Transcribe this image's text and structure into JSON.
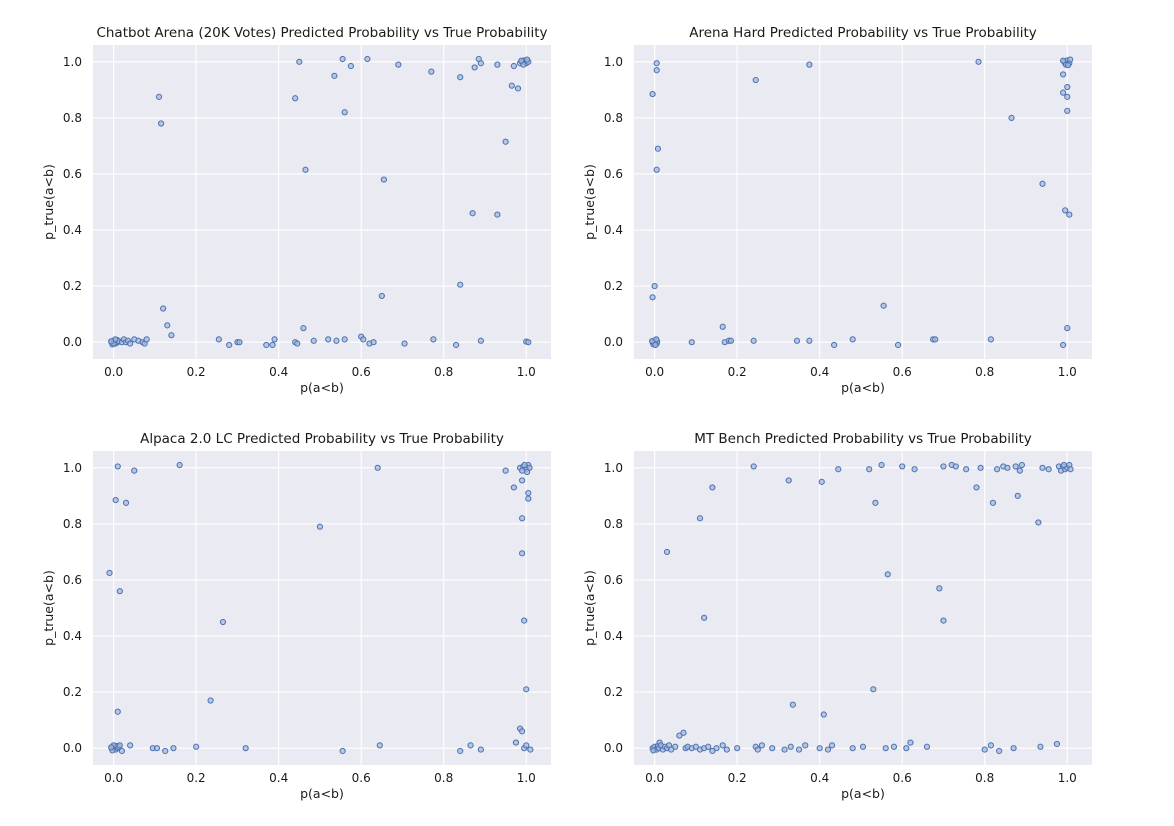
{
  "figure": {
    "colors": {
      "plot_bg": "#eaeaf2",
      "grid": "#ffffff",
      "marker_fill": "#a4b9dd",
      "marker_edge": "#4c72b0"
    }
  },
  "chart_data": [
    {
      "type": "scatter",
      "title": "Chatbot Arena (20K Votes) Predicted Probability vs True Probability",
      "xlabel": "p(a<b)",
      "ylabel": "p_true(a<b)",
      "xlim": [
        -0.05,
        1.06
      ],
      "ylim": [
        -0.06,
        1.06
      ],
      "xticks": [
        "0.0",
        "0.2",
        "0.4",
        "0.6",
        "0.8",
        "1.0"
      ],
      "yticks": [
        "0.0",
        "0.2",
        "0.4",
        "0.6",
        "0.8",
        "1.0"
      ],
      "grid": true,
      "points": [
        [
          -0.005,
          0.0
        ],
        [
          0.0,
          0.005
        ],
        [
          0.005,
          -0.005
        ],
        [
          0.008,
          0.008
        ],
        [
          -0.003,
          -0.008
        ],
        [
          0.01,
          0.0
        ],
        [
          0.0,
          -0.004
        ],
        [
          0.012,
          0.004
        ],
        [
          0.004,
          0.01
        ],
        [
          -0.006,
          0.003
        ],
        [
          0.02,
          0.0
        ],
        [
          0.025,
          0.01
        ],
        [
          0.03,
          0.0
        ],
        [
          0.035,
          0.005
        ],
        [
          0.04,
          -0.005
        ],
        [
          0.05,
          0.01
        ],
        [
          0.06,
          0.005
        ],
        [
          0.07,
          0.0
        ],
        [
          0.075,
          -0.005
        ],
        [
          0.08,
          0.01
        ],
        [
          0.11,
          0.875
        ],
        [
          0.115,
          0.78
        ],
        [
          0.12,
          0.12
        ],
        [
          0.13,
          0.06
        ],
        [
          0.14,
          0.025
        ],
        [
          0.255,
          0.01
        ],
        [
          0.28,
          -0.01
        ],
        [
          0.3,
          0.0
        ],
        [
          0.305,
          0.0
        ],
        [
          0.37,
          -0.01
        ],
        [
          0.385,
          -0.01
        ],
        [
          0.39,
          0.01
        ],
        [
          0.44,
          0.87
        ],
        [
          0.45,
          1.0
        ],
        [
          0.46,
          0.05
        ],
        [
          0.465,
          0.615
        ],
        [
          0.44,
          0.0
        ],
        [
          0.445,
          -0.005
        ],
        [
          0.485,
          0.005
        ],
        [
          0.52,
          0.01
        ],
        [
          0.535,
          0.95
        ],
        [
          0.54,
          0.005
        ],
        [
          0.555,
          1.01
        ],
        [
          0.56,
          0.82
        ],
        [
          0.56,
          0.01
        ],
        [
          0.575,
          0.985
        ],
        [
          0.6,
          0.02
        ],
        [
          0.605,
          0.01
        ],
        [
          0.615,
          1.01
        ],
        [
          0.62,
          -0.005
        ],
        [
          0.63,
          0.0
        ],
        [
          0.65,
          0.165
        ],
        [
          0.655,
          0.58
        ],
        [
          0.69,
          0.99
        ],
        [
          0.705,
          -0.005
        ],
        [
          0.77,
          0.965
        ],
        [
          0.775,
          0.01
        ],
        [
          0.83,
          -0.01
        ],
        [
          0.84,
          0.205
        ],
        [
          0.84,
          0.945
        ],
        [
          0.87,
          0.46
        ],
        [
          0.875,
          0.98
        ],
        [
          0.885,
          1.01
        ],
        [
          0.89,
          0.995
        ],
        [
          0.89,
          0.005
        ],
        [
          0.93,
          0.455
        ],
        [
          0.93,
          0.99
        ],
        [
          0.95,
          0.715
        ],
        [
          0.965,
          0.915
        ],
        [
          0.97,
          0.985
        ],
        [
          0.98,
          0.905
        ],
        [
          0.985,
          0.995
        ],
        [
          0.99,
          1.0
        ],
        [
          0.995,
          1.005
        ],
        [
          1.0,
          0.995
        ],
        [
          1.005,
          1.0
        ],
        [
          0.993,
          0.99
        ],
        [
          1.002,
          1.008
        ],
        [
          0.988,
          1.004
        ],
        [
          1.0,
          0.002
        ],
        [
          1.005,
          0.0
        ]
      ]
    },
    {
      "type": "scatter",
      "title": "Arena Hard Predicted Probability vs True Probability",
      "xlabel": "p(a<b)",
      "ylabel": "p_true(a<b)",
      "xlim": [
        -0.05,
        1.06
      ],
      "ylim": [
        -0.06,
        1.06
      ],
      "xticks": [
        "0.0",
        "0.2",
        "0.4",
        "0.6",
        "0.8",
        "1.0"
      ],
      "yticks": [
        "0.0",
        "0.2",
        "0.4",
        "0.6",
        "0.8",
        "1.0"
      ],
      "grid": true,
      "points": [
        [
          -0.005,
          0.0
        ],
        [
          0.0,
          0.005
        ],
        [
          0.005,
          -0.005
        ],
        [
          0.003,
          0.008
        ],
        [
          -0.003,
          -0.008
        ],
        [
          0.006,
          0.002
        ],
        [
          0.0,
          -0.003
        ],
        [
          -0.006,
          0.004
        ],
        [
          0.004,
          0.01
        ],
        [
          0.002,
          -0.01
        ],
        [
          -0.005,
          0.885
        ],
        [
          0.005,
          0.995
        ],
        [
          0.005,
          0.97
        ],
        [
          0.008,
          0.69
        ],
        [
          0.005,
          0.615
        ],
        [
          0.0,
          0.2
        ],
        [
          -0.005,
          0.16
        ],
        [
          0.09,
          0.0
        ],
        [
          0.165,
          0.055
        ],
        [
          0.17,
          0.0
        ],
        [
          0.18,
          0.005
        ],
        [
          0.185,
          0.005
        ],
        [
          0.24,
          0.005
        ],
        [
          0.245,
          0.935
        ],
        [
          0.345,
          0.005
        ],
        [
          0.375,
          0.99
        ],
        [
          0.375,
          0.005
        ],
        [
          0.435,
          -0.01
        ],
        [
          0.48,
          0.01
        ],
        [
          0.555,
          0.13
        ],
        [
          0.59,
          -0.01
        ],
        [
          0.675,
          0.01
        ],
        [
          0.68,
          0.01
        ],
        [
          0.785,
          1.0
        ],
        [
          0.815,
          0.01
        ],
        [
          0.865,
          0.8
        ],
        [
          0.94,
          0.565
        ],
        [
          0.99,
          0.955
        ],
        [
          0.99,
          0.89
        ],
        [
          0.995,
          0.995
        ],
        [
          1.0,
          0.91
        ],
        [
          0.995,
          0.47
        ],
        [
          1.005,
          0.455
        ],
        [
          1.0,
          0.825
        ],
        [
          1.0,
          0.875
        ],
        [
          1.0,
          0.05
        ],
        [
          0.99,
          -0.01
        ],
        [
          0.993,
          1.0
        ],
        [
          1.0,
          1.005
        ],
        [
          1.005,
          0.995
        ],
        [
          0.997,
          0.99
        ],
        [
          1.007,
          1.008
        ],
        [
          0.99,
          1.004
        ],
        [
          1.002,
          0.988
        ]
      ]
    },
    {
      "type": "scatter",
      "title": "Alpaca 2.0 LC Predicted Probability vs True Probability",
      "xlabel": "p(a<b)",
      "ylabel": "p_true(a<b)",
      "xlim": [
        -0.05,
        1.06
      ],
      "ylim": [
        -0.06,
        1.06
      ],
      "xticks": [
        "0.0",
        "0.2",
        "0.4",
        "0.6",
        "0.8",
        "1.0"
      ],
      "yticks": [
        "0.0",
        "0.2",
        "0.4",
        "0.6",
        "0.8",
        "1.0"
      ],
      "grid": true,
      "points": [
        [
          -0.005,
          0.0
        ],
        [
          0.0,
          0.005
        ],
        [
          0.005,
          -0.005
        ],
        [
          0.008,
          0.008
        ],
        [
          -0.003,
          -0.008
        ],
        [
          0.01,
          0.0
        ],
        [
          0.0,
          0.01
        ],
        [
          0.012,
          0.005
        ],
        [
          -0.006,
          0.003
        ],
        [
          0.015,
          0.01
        ],
        [
          -0.01,
          0.625
        ],
        [
          0.005,
          0.885
        ],
        [
          0.01,
          1.005
        ],
        [
          0.01,
          0.13
        ],
        [
          0.015,
          0.56
        ],
        [
          0.02,
          -0.01
        ],
        [
          0.03,
          0.875
        ],
        [
          0.04,
          0.01
        ],
        [
          0.05,
          0.99
        ],
        [
          0.095,
          0.0
        ],
        [
          0.105,
          0.0
        ],
        [
          0.125,
          -0.01
        ],
        [
          0.145,
          0.0
        ],
        [
          0.16,
          1.01
        ],
        [
          0.2,
          0.005
        ],
        [
          0.235,
          0.17
        ],
        [
          0.265,
          0.45
        ],
        [
          0.32,
          0.0
        ],
        [
          0.5,
          0.79
        ],
        [
          0.555,
          -0.01
        ],
        [
          0.64,
          1.0
        ],
        [
          0.645,
          0.01
        ],
        [
          0.84,
          -0.01
        ],
        [
          0.865,
          0.01
        ],
        [
          0.89,
          -0.005
        ],
        [
          0.95,
          0.99
        ],
        [
          0.97,
          0.93
        ],
        [
          0.975,
          0.02
        ],
        [
          0.985,
          0.07
        ],
        [
          0.99,
          0.06
        ],
        [
          0.99,
          0.955
        ],
        [
          0.99,
          0.82
        ],
        [
          0.99,
          0.695
        ],
        [
          0.995,
          0.455
        ],
        [
          1.0,
          0.21
        ],
        [
          1.005,
          0.91
        ],
        [
          1.005,
          0.89
        ],
        [
          0.995,
          0.0
        ],
        [
          1.0,
          0.01
        ],
        [
          1.01,
          -0.005
        ],
        [
          0.985,
          1.0
        ],
        [
          0.993,
          1.005
        ],
        [
          1.0,
          0.995
        ],
        [
          1.005,
          1.01
        ],
        [
          0.99,
          0.99
        ],
        [
          1.008,
          1.0
        ],
        [
          0.996,
          1.01
        ],
        [
          1.002,
          0.985
        ]
      ]
    },
    {
      "type": "scatter",
      "title": "MT Bench Predicted Probability vs True Probability",
      "xlabel": "p(a<b)",
      "ylabel": "p_true(a<b)",
      "xlim": [
        -0.05,
        1.06
      ],
      "ylim": [
        -0.06,
        1.06
      ],
      "xticks": [
        "0.0",
        "0.2",
        "0.4",
        "0.6",
        "0.8",
        "1.0"
      ],
      "yticks": [
        "0.0",
        "0.2",
        "0.4",
        "0.6",
        "0.8",
        "1.0"
      ],
      "grid": true,
      "points": [
        [
          -0.005,
          0.0
        ],
        [
          0.0,
          0.005
        ],
        [
          0.005,
          -0.005
        ],
        [
          0.008,
          0.008
        ],
        [
          -0.003,
          -0.008
        ],
        [
          0.01,
          0.0
        ],
        [
          0.012,
          0.02
        ],
        [
          0.015,
          0.01
        ],
        [
          0.02,
          -0.005
        ],
        [
          0.025,
          0.005
        ],
        [
          0.03,
          0.0
        ],
        [
          0.035,
          0.01
        ],
        [
          0.04,
          -0.005
        ],
        [
          0.05,
          0.005
        ],
        [
          0.06,
          0.045
        ],
        [
          0.07,
          0.055
        ],
        [
          0.075,
          0.0
        ],
        [
          0.08,
          0.005
        ],
        [
          0.09,
          0.0
        ],
        [
          0.1,
          0.005
        ],
        [
          0.11,
          -0.005
        ],
        [
          0.12,
          0.0
        ],
        [
          0.13,
          0.005
        ],
        [
          0.14,
          -0.01
        ],
        [
          0.15,
          0.0
        ],
        [
          0.165,
          0.01
        ],
        [
          0.175,
          -0.005
        ],
        [
          0.2,
          0.0
        ],
        [
          0.03,
          0.7
        ],
        [
          0.11,
          0.82
        ],
        [
          0.12,
          0.465
        ],
        [
          0.14,
          0.93
        ],
        [
          0.24,
          1.005
        ],
        [
          0.245,
          0.005
        ],
        [
          0.25,
          -0.005
        ],
        [
          0.26,
          0.01
        ],
        [
          0.285,
          0.0
        ],
        [
          0.315,
          -0.005
        ],
        [
          0.325,
          0.955
        ],
        [
          0.33,
          0.005
        ],
        [
          0.335,
          0.155
        ],
        [
          0.35,
          -0.005
        ],
        [
          0.365,
          0.01
        ],
        [
          0.4,
          0.0
        ],
        [
          0.405,
          0.95
        ],
        [
          0.41,
          0.12
        ],
        [
          0.42,
          -0.005
        ],
        [
          0.43,
          0.01
        ],
        [
          0.445,
          0.995
        ],
        [
          0.48,
          0.0
        ],
        [
          0.505,
          0.005
        ],
        [
          0.52,
          0.995
        ],
        [
          0.53,
          0.21
        ],
        [
          0.535,
          0.875
        ],
        [
          0.55,
          1.01
        ],
        [
          0.56,
          0.0
        ],
        [
          0.565,
          0.62
        ],
        [
          0.58,
          0.005
        ],
        [
          0.6,
          1.005
        ],
        [
          0.61,
          0.0
        ],
        [
          0.62,
          0.02
        ],
        [
          0.63,
          0.995
        ],
        [
          0.66,
          0.005
        ],
        [
          0.69,
          0.57
        ],
        [
          0.7,
          0.455
        ],
        [
          0.7,
          1.005
        ],
        [
          0.72,
          1.01
        ],
        [
          0.73,
          1.005
        ],
        [
          0.755,
          0.995
        ],
        [
          0.78,
          0.93
        ],
        [
          0.79,
          1.0
        ],
        [
          0.8,
          -0.005
        ],
        [
          0.815,
          0.01
        ],
        [
          0.82,
          0.875
        ],
        [
          0.83,
          0.995
        ],
        [
          0.835,
          -0.01
        ],
        [
          0.845,
          1.005
        ],
        [
          0.855,
          1.0
        ],
        [
          0.87,
          0.0
        ],
        [
          0.875,
          1.005
        ],
        [
          0.88,
          0.9
        ],
        [
          0.885,
          0.99
        ],
        [
          0.89,
          1.01
        ],
        [
          0.93,
          0.805
        ],
        [
          0.935,
          0.005
        ],
        [
          0.94,
          1.0
        ],
        [
          0.955,
          0.995
        ],
        [
          0.975,
          0.015
        ],
        [
          0.98,
          1.005
        ],
        [
          0.985,
          0.99
        ],
        [
          0.99,
          1.005
        ],
        [
          0.995,
          0.995
        ],
        [
          1.0,
          1.0
        ],
        [
          1.005,
          1.01
        ],
        [
          1.008,
          0.995
        ],
        [
          0.992,
          1.01
        ]
      ]
    }
  ]
}
